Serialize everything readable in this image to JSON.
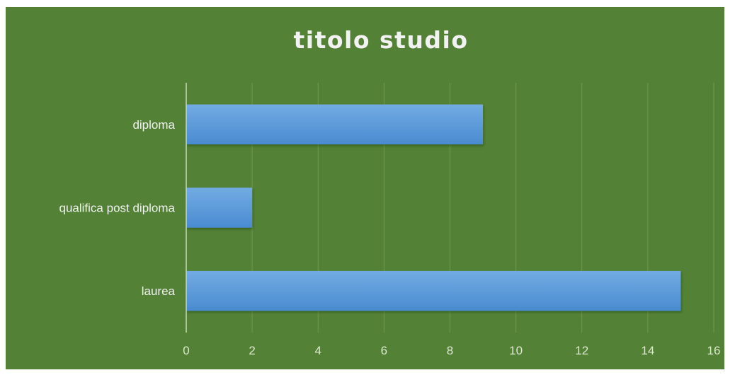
{
  "chart_data": {
    "type": "bar",
    "orientation": "horizontal",
    "title": "titolo studio",
    "categories": [
      "diploma",
      "qualifica post diploma",
      "laurea"
    ],
    "values": [
      9,
      2,
      15
    ],
    "xlabel": "",
    "ylabel": "",
    "xlim": [
      0,
      16
    ],
    "xticks": [
      "0",
      "2",
      "4",
      "6",
      "8",
      "10",
      "12",
      "14",
      "16"
    ],
    "grid": "vertical",
    "legend": "none",
    "colors": {
      "background": "#538135",
      "bar": "#5b9bd5",
      "bar_light": "#72abe3",
      "text": "#f2f2f2",
      "gridline": "#6f9a52"
    }
  }
}
